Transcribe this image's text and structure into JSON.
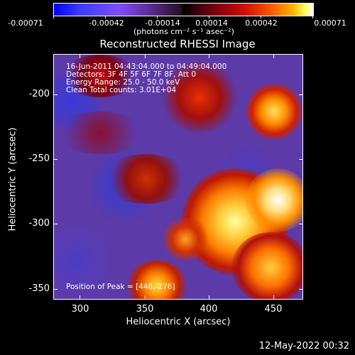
{
  "colorbar": {
    "ticks": [
      "-0.00071",
      "-0.00042",
      "-0.00014",
      "0.00014",
      "0.00042",
      "0.00071"
    ],
    "unit": "(photons cm⁻² s⁻¹ asec⁻²)"
  },
  "chart_data": {
    "type": "heatmap",
    "title": "Reconstructed RHESSI Image",
    "xlabel": "Heliocentric X (arcsec)",
    "ylabel": "Heliocentric Y (arcsec)",
    "xticks": [
      "300",
      "350",
      "400",
      "450"
    ],
    "yticks": [
      "-200",
      "-250",
      "-300",
      "-350"
    ],
    "xlim": [
      280,
      470
    ],
    "ylim": [
      -365,
      -172
    ],
    "clim": [
      -0.00071,
      0.00071
    ],
    "annotations": {
      "time": "16-Jun-2011 04:43:04.000 to 04:49:04.000",
      "detectors": "Detectors: 3F 4F 5F 6F 7F 8F, Att 0",
      "energy": "Energy Range: 25.0 - 50.0 keV",
      "clean": "Clean     Total counts: 3.01E+04",
      "peak": "Position of Peak = [448,-276]"
    },
    "peak": {
      "x": 448,
      "y": -276
    }
  },
  "footer": {
    "date": "12-May-2022 00:32"
  }
}
